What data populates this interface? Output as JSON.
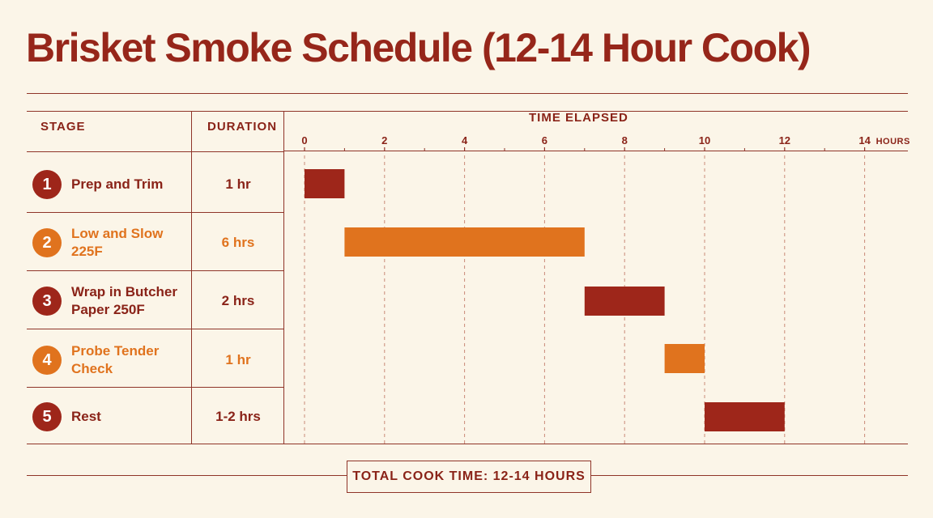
{
  "title": "Brisket Smoke Schedule (12-14 Hour Cook)",
  "headers": {
    "stage": "STAGE",
    "duration": "DURATION",
    "time": "TIME ELAPSED",
    "unit": "HOURS"
  },
  "colors": {
    "dark": "#9e261a",
    "orange": "#e0731e",
    "background": "#fbf5e8"
  },
  "stages": [
    {
      "num": "1",
      "name": "Prep and Trim",
      "duration": "1 hr",
      "style": "dark"
    },
    {
      "num": "2",
      "name": "Low and Slow 225F",
      "duration": "6 hrs",
      "style": "orange"
    },
    {
      "num": "3",
      "name": "Wrap in Butcher Paper 250F",
      "duration": "2 hrs",
      "style": "dark"
    },
    {
      "num": "4",
      "name": "Probe Tender Check",
      "duration": "1 hr",
      "style": "orange"
    },
    {
      "num": "5",
      "name": "Rest",
      "duration": "1-2 hrs",
      "style": "dark"
    }
  ],
  "chart_data": {
    "type": "bar",
    "orientation": "horizontal-gantt",
    "categories": [
      "Prep and Trim",
      "Low and Slow 225F",
      "Wrap in Butcher Paper 250F",
      "Probe Tender Check",
      "Rest"
    ],
    "bars": [
      {
        "start": 0,
        "end": 1,
        "style": "dark"
      },
      {
        "start": 1,
        "end": 7,
        "style": "orange"
      },
      {
        "start": 7,
        "end": 9,
        "style": "dark"
      },
      {
        "start": 9,
        "end": 10,
        "style": "orange"
      },
      {
        "start": 10,
        "end": 12,
        "style": "dark"
      }
    ],
    "xlabel": "TIME ELAPSED",
    "xunit": "HOURS",
    "xlim": [
      0,
      14
    ],
    "xticks": [
      0,
      2,
      4,
      6,
      8,
      10,
      12,
      14
    ],
    "minor_ticks": [
      1,
      3,
      5,
      7,
      9,
      11,
      13
    ],
    "grid": true
  },
  "footer": {
    "total": "TOTAL COOK TIME: 12-14 HOURS"
  }
}
